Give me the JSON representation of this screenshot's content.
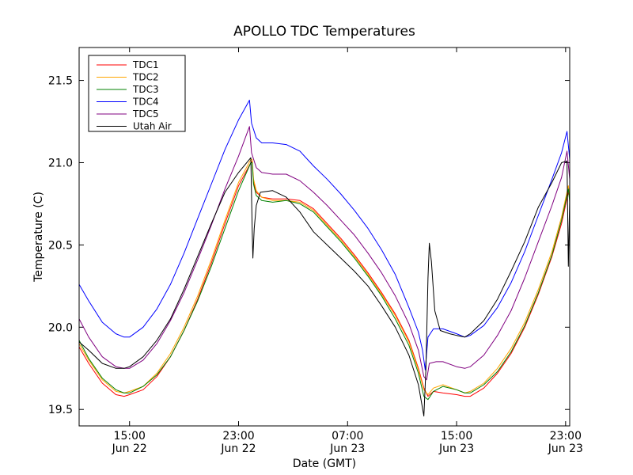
{
  "chart_data": {
    "type": "line",
    "title": "APOLLO TDC Temperatures",
    "xlabel": "Date (GMT)",
    "ylabel": "Temperature (C)",
    "x_unit": "hours since Jun 22 00:00 GMT",
    "xlim": [
      11.3,
      47.3
    ],
    "ylim": [
      19.4,
      21.7
    ],
    "y_ticks": [
      19.5,
      20.0,
      20.5,
      21.0,
      21.5
    ],
    "y_tick_labels": [
      "19.5",
      "20.0",
      "20.5",
      "21.0",
      "21.5"
    ],
    "x_ticks": [
      {
        "value": 15,
        "time": "15:00",
        "date": "Jun 22"
      },
      {
        "value": 23,
        "time": "23:00",
        "date": "Jun 22"
      },
      {
        "value": 31,
        "time": "07:00",
        "date": "Jun 23"
      },
      {
        "value": 39,
        "time": "15:00",
        "date": "Jun 23"
      },
      {
        "value": 47,
        "time": "23:00",
        "date": "Jun 23"
      }
    ],
    "legend_position": "top-left",
    "series": [
      {
        "name": "TDC1",
        "color": "#ff0000",
        "points": [
          [
            11.3,
            19.88
          ],
          [
            12.0,
            19.78
          ],
          [
            13.0,
            19.66
          ],
          [
            14.0,
            19.59
          ],
          [
            14.6,
            19.58
          ],
          [
            15.0,
            19.59
          ],
          [
            16.0,
            19.62
          ],
          [
            17.0,
            19.7
          ],
          [
            18.0,
            19.82
          ],
          [
            19.0,
            19.98
          ],
          [
            20.0,
            20.17
          ],
          [
            21.0,
            20.39
          ],
          [
            22.0,
            20.63
          ],
          [
            23.0,
            20.86
          ],
          [
            23.9,
            21.0
          ],
          [
            24.0,
            21.01
          ],
          [
            24.1,
            20.88
          ],
          [
            24.3,
            20.82
          ],
          [
            24.7,
            20.79
          ],
          [
            25.5,
            20.78
          ],
          [
            26.5,
            20.78
          ],
          [
            27.5,
            20.77
          ],
          [
            28.5,
            20.72
          ],
          [
            29.5,
            20.63
          ],
          [
            30.5,
            20.54
          ],
          [
            31.5,
            20.44
          ],
          [
            32.5,
            20.33
          ],
          [
            33.5,
            20.21
          ],
          [
            34.5,
            20.08
          ],
          [
            35.5,
            19.92
          ],
          [
            36.2,
            19.75
          ],
          [
            36.6,
            19.63
          ],
          [
            36.9,
            19.58
          ],
          [
            37.3,
            19.61
          ],
          [
            38.0,
            19.6
          ],
          [
            39.0,
            19.59
          ],
          [
            39.6,
            19.58
          ],
          [
            40.0,
            19.58
          ],
          [
            41.0,
            19.63
          ],
          [
            42.0,
            19.72
          ],
          [
            43.0,
            19.84
          ],
          [
            44.0,
            20.0
          ],
          [
            45.0,
            20.2
          ],
          [
            46.0,
            20.43
          ],
          [
            46.7,
            20.63
          ],
          [
            47.2,
            20.82
          ],
          [
            47.3,
            20.78
          ]
        ]
      },
      {
        "name": "TDC2",
        "color": "#ffa500",
        "points": [
          [
            11.3,
            19.9
          ],
          [
            12.0,
            19.8
          ],
          [
            13.0,
            19.68
          ],
          [
            14.0,
            19.61
          ],
          [
            14.6,
            19.6
          ],
          [
            15.0,
            19.61
          ],
          [
            16.0,
            19.64
          ],
          [
            17.0,
            19.72
          ],
          [
            18.0,
            19.84
          ],
          [
            19.0,
            20.0
          ],
          [
            20.0,
            20.19
          ],
          [
            21.0,
            20.41
          ],
          [
            22.0,
            20.65
          ],
          [
            23.0,
            20.88
          ],
          [
            23.9,
            21.02
          ],
          [
            24.0,
            21.02
          ],
          [
            24.1,
            20.9
          ],
          [
            24.3,
            20.83
          ],
          [
            24.7,
            20.79
          ],
          [
            25.5,
            20.77
          ],
          [
            26.5,
            20.77
          ],
          [
            27.5,
            20.76
          ],
          [
            28.5,
            20.71
          ],
          [
            29.5,
            20.62
          ],
          [
            30.5,
            20.53
          ],
          [
            31.5,
            20.43
          ],
          [
            32.5,
            20.32
          ],
          [
            33.5,
            20.2
          ],
          [
            34.5,
            20.07
          ],
          [
            35.5,
            19.91
          ],
          [
            36.2,
            19.74
          ],
          [
            36.6,
            19.62
          ],
          [
            36.9,
            19.59
          ],
          [
            37.3,
            19.63
          ],
          [
            38.0,
            19.65
          ],
          [
            39.0,
            19.62
          ],
          [
            39.6,
            19.6
          ],
          [
            40.0,
            19.61
          ],
          [
            41.0,
            19.66
          ],
          [
            42.0,
            19.75
          ],
          [
            43.0,
            19.87
          ],
          [
            44.0,
            20.03
          ],
          [
            45.0,
            20.23
          ],
          [
            46.0,
            20.46
          ],
          [
            46.7,
            20.67
          ],
          [
            47.2,
            20.86
          ],
          [
            47.3,
            20.8
          ]
        ]
      },
      {
        "name": "TDC3",
        "color": "#008000",
        "points": [
          [
            11.3,
            19.92
          ],
          [
            12.0,
            19.81
          ],
          [
            13.0,
            19.69
          ],
          [
            14.0,
            19.62
          ],
          [
            14.6,
            19.6
          ],
          [
            15.0,
            19.6
          ],
          [
            16.0,
            19.64
          ],
          [
            17.0,
            19.71
          ],
          [
            18.0,
            19.82
          ],
          [
            19.0,
            19.98
          ],
          [
            20.0,
            20.16
          ],
          [
            21.0,
            20.37
          ],
          [
            22.0,
            20.6
          ],
          [
            23.0,
            20.83
          ],
          [
            23.9,
            21.0
          ],
          [
            24.0,
            21.0
          ],
          [
            24.1,
            20.87
          ],
          [
            24.3,
            20.8
          ],
          [
            24.7,
            20.77
          ],
          [
            25.5,
            20.76
          ],
          [
            26.5,
            20.77
          ],
          [
            27.5,
            20.75
          ],
          [
            28.5,
            20.7
          ],
          [
            29.5,
            20.61
          ],
          [
            30.5,
            20.52
          ],
          [
            31.5,
            20.42
          ],
          [
            32.5,
            20.31
          ],
          [
            33.5,
            20.19
          ],
          [
            34.5,
            20.05
          ],
          [
            35.5,
            19.89
          ],
          [
            36.2,
            19.72
          ],
          [
            36.6,
            19.58
          ],
          [
            36.9,
            19.56
          ],
          [
            37.3,
            19.61
          ],
          [
            38.0,
            19.64
          ],
          [
            39.0,
            19.62
          ],
          [
            39.6,
            19.6
          ],
          [
            40.0,
            19.6
          ],
          [
            41.0,
            19.65
          ],
          [
            42.0,
            19.73
          ],
          [
            43.0,
            19.85
          ],
          [
            44.0,
            20.01
          ],
          [
            45.0,
            20.21
          ],
          [
            46.0,
            20.44
          ],
          [
            46.7,
            20.65
          ],
          [
            47.2,
            20.84
          ],
          [
            47.3,
            20.76
          ]
        ]
      },
      {
        "name": "TDC4",
        "color": "#0000ff",
        "points": [
          [
            11.3,
            20.26
          ],
          [
            12.0,
            20.16
          ],
          [
            13.0,
            20.03
          ],
          [
            14.0,
            19.96
          ],
          [
            14.6,
            19.94
          ],
          [
            15.0,
            19.94
          ],
          [
            16.0,
            20.0
          ],
          [
            17.0,
            20.11
          ],
          [
            18.0,
            20.26
          ],
          [
            19.0,
            20.45
          ],
          [
            20.0,
            20.66
          ],
          [
            21.0,
            20.87
          ],
          [
            22.0,
            21.08
          ],
          [
            23.0,
            21.26
          ],
          [
            23.8,
            21.38
          ],
          [
            23.95,
            21.24
          ],
          [
            24.3,
            21.15
          ],
          [
            24.7,
            21.12
          ],
          [
            25.5,
            21.12
          ],
          [
            26.5,
            21.11
          ],
          [
            27.5,
            21.07
          ],
          [
            28.5,
            20.98
          ],
          [
            29.5,
            20.9
          ],
          [
            30.5,
            20.81
          ],
          [
            31.5,
            20.71
          ],
          [
            32.5,
            20.6
          ],
          [
            33.5,
            20.47
          ],
          [
            34.5,
            20.32
          ],
          [
            35.5,
            20.12
          ],
          [
            36.2,
            19.97
          ],
          [
            36.5,
            19.86
          ],
          [
            36.7,
            19.74
          ],
          [
            36.9,
            19.94
          ],
          [
            37.3,
            19.99
          ],
          [
            38.0,
            19.99
          ],
          [
            39.0,
            19.96
          ],
          [
            39.6,
            19.94
          ],
          [
            40.0,
            19.95
          ],
          [
            41.0,
            20.01
          ],
          [
            42.0,
            20.12
          ],
          [
            43.0,
            20.27
          ],
          [
            44.0,
            20.46
          ],
          [
            45.0,
            20.68
          ],
          [
            46.0,
            20.9
          ],
          [
            46.7,
            21.06
          ],
          [
            47.1,
            21.19
          ],
          [
            47.3,
            21.02
          ]
        ]
      },
      {
        "name": "TDC5",
        "color": "#800080",
        "points": [
          [
            11.3,
            20.05
          ],
          [
            12.0,
            19.94
          ],
          [
            13.0,
            19.82
          ],
          [
            14.0,
            19.76
          ],
          [
            14.6,
            19.75
          ],
          [
            15.0,
            19.75
          ],
          [
            16.0,
            19.8
          ],
          [
            17.0,
            19.9
          ],
          [
            18.0,
            20.04
          ],
          [
            19.0,
            20.21
          ],
          [
            20.0,
            20.41
          ],
          [
            21.0,
            20.62
          ],
          [
            22.0,
            20.84
          ],
          [
            23.0,
            21.04
          ],
          [
            23.8,
            21.22
          ],
          [
            23.95,
            21.06
          ],
          [
            24.3,
            20.97
          ],
          [
            24.7,
            20.94
          ],
          [
            25.5,
            20.93
          ],
          [
            26.5,
            20.93
          ],
          [
            27.5,
            20.89
          ],
          [
            28.5,
            20.82
          ],
          [
            29.5,
            20.74
          ],
          [
            30.5,
            20.65
          ],
          [
            31.5,
            20.56
          ],
          [
            32.5,
            20.45
          ],
          [
            33.5,
            20.33
          ],
          [
            34.5,
            20.19
          ],
          [
            35.5,
            20.02
          ],
          [
            36.2,
            19.86
          ],
          [
            36.6,
            19.7
          ],
          [
            36.8,
            19.68
          ],
          [
            37.0,
            19.78
          ],
          [
            37.5,
            19.79
          ],
          [
            38.0,
            19.79
          ],
          [
            39.0,
            19.76
          ],
          [
            39.6,
            19.75
          ],
          [
            40.0,
            19.76
          ],
          [
            41.0,
            19.83
          ],
          [
            42.0,
            19.95
          ],
          [
            43.0,
            20.1
          ],
          [
            44.0,
            20.3
          ],
          [
            45.0,
            20.52
          ],
          [
            46.0,
            20.74
          ],
          [
            46.7,
            20.91
          ],
          [
            47.1,
            21.07
          ],
          [
            47.3,
            20.9
          ]
        ]
      },
      {
        "name": "Utah Air",
        "color": "#000000",
        "points": [
          [
            11.3,
            19.91
          ],
          [
            12.0,
            19.86
          ],
          [
            13.0,
            19.78
          ],
          [
            14.0,
            19.75
          ],
          [
            14.6,
            19.75
          ],
          [
            15.0,
            19.76
          ],
          [
            16.0,
            19.82
          ],
          [
            17.0,
            19.92
          ],
          [
            18.0,
            20.05
          ],
          [
            19.0,
            20.23
          ],
          [
            20.0,
            20.43
          ],
          [
            21.0,
            20.63
          ],
          [
            22.0,
            20.82
          ],
          [
            23.0,
            20.94
          ],
          [
            23.9,
            21.03
          ],
          [
            24.0,
            20.6
          ],
          [
            24.05,
            20.42
          ],
          [
            24.15,
            20.6
          ],
          [
            24.3,
            20.74
          ],
          [
            24.6,
            20.82
          ],
          [
            25.5,
            20.83
          ],
          [
            26.5,
            20.79
          ],
          [
            27.5,
            20.7
          ],
          [
            28.5,
            20.58
          ],
          [
            29.5,
            20.5
          ],
          [
            30.5,
            20.42
          ],
          [
            31.5,
            20.34
          ],
          [
            32.5,
            20.25
          ],
          [
            33.5,
            20.13
          ],
          [
            34.5,
            20.0
          ],
          [
            35.5,
            19.83
          ],
          [
            36.2,
            19.65
          ],
          [
            36.6,
            19.46
          ],
          [
            36.75,
            19.75
          ],
          [
            36.9,
            20.3
          ],
          [
            37.0,
            20.51
          ],
          [
            37.15,
            20.4
          ],
          [
            37.4,
            20.1
          ],
          [
            37.8,
            19.98
          ],
          [
            38.5,
            19.96
          ],
          [
            39.0,
            19.95
          ],
          [
            39.6,
            19.94
          ],
          [
            40.0,
            19.96
          ],
          [
            41.0,
            20.04
          ],
          [
            42.0,
            20.17
          ],
          [
            43.0,
            20.34
          ],
          [
            44.0,
            20.52
          ],
          [
            45.0,
            20.73
          ],
          [
            46.0,
            20.88
          ],
          [
            46.7,
            21.0
          ],
          [
            47.1,
            21.01
          ],
          [
            47.2,
            20.37
          ],
          [
            47.3,
            20.8
          ]
        ]
      }
    ]
  }
}
